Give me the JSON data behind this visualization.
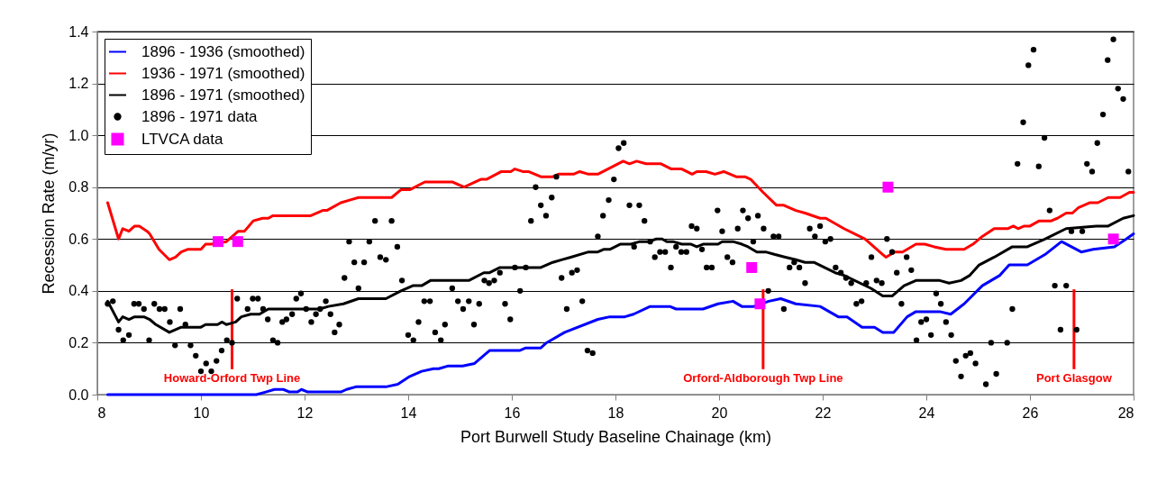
{
  "chart_data": {
    "type": "line",
    "xlabel": "Port Burwell Study Baseline Chainage (km)",
    "ylabel": "Recession Rate (m/yr)",
    "xlim": [
      8,
      28
    ],
    "xticks": [
      8,
      10,
      12,
      14,
      16,
      18,
      20,
      22,
      24,
      26,
      28
    ],
    "ylim": [
      0,
      1.4
    ],
    "yticks": [
      {
        "value": 0,
        "label": "0.0"
      },
      {
        "value": 0.2,
        "label": "0.2"
      },
      {
        "value": 0.4,
        "label": "0.4"
      },
      {
        "value": 0.6,
        "label": "0.6"
      },
      {
        "value": 0.8,
        "label": "0.8"
      },
      {
        "value": 1,
        "label": "1.0"
      },
      {
        "value": 1.2,
        "label": "1.2"
      },
      {
        "value": 1.4,
        "label": "1.4"
      }
    ],
    "grid": "y",
    "legend": "top left",
    "series": [
      {
        "name": "1896 - 1936 (smoothed)",
        "marker": "none",
        "color": "#0000ff",
        "x": [
          8.2,
          11.07,
          11.25,
          11.42,
          11.59,
          11.71,
          11.86,
          11.94,
          12.06,
          12.7,
          12.81,
          12.99,
          13.57,
          13.8,
          14.03,
          14.26,
          14.49,
          14.59,
          14.76,
          15.05,
          15.28,
          15.57,
          15.8,
          16.15,
          16.27,
          16.56,
          16.67,
          17.02,
          17.66,
          17.89,
          18.18,
          18.35,
          18.67,
          19.05,
          19.17,
          19.69,
          19.98,
          20.27,
          20.44,
          20.67,
          20.96,
          21.19,
          21.48,
          21.95,
          22.3,
          22.47,
          22.76,
          23.0,
          23.16,
          23.37,
          23.63,
          23.8,
          24.26,
          24.47,
          24.73,
          25.08,
          25.42,
          25.6,
          25.95,
          26.29,
          26.61,
          26.99,
          27.22,
          27.63,
          27.86,
          28.0
        ],
        "values": [
          0,
          0,
          0.01,
          0.02,
          0.02,
          0.01,
          0.01,
          0.02,
          0.01,
          0.01,
          0.02,
          0.03,
          0.03,
          0.04,
          0.07,
          0.09,
          0.1,
          0.1,
          0.11,
          0.11,
          0.12,
          0.17,
          0.17,
          0.17,
          0.18,
          0.18,
          0.2,
          0.24,
          0.29,
          0.3,
          0.3,
          0.31,
          0.34,
          0.34,
          0.33,
          0.33,
          0.35,
          0.36,
          0.34,
          0.34,
          0.36,
          0.37,
          0.35,
          0.34,
          0.3,
          0.3,
          0.26,
          0.26,
          0.24,
          0.24,
          0.3,
          0.32,
          0.32,
          0.31,
          0.35,
          0.42,
          0.46,
          0.5,
          0.5,
          0.54,
          0.59,
          0.55,
          0.56,
          0.57,
          0.6,
          0.62
        ]
      },
      {
        "name": "1936 - 1971 (smoothed)",
        "marker": "none",
        "color": "#ff0000",
        "x": [
          8.2,
          8.41,
          8.49,
          8.61,
          8.72,
          8.81,
          8.96,
          9.01,
          9.19,
          9.39,
          9.51,
          9.62,
          9.74,
          10.0,
          10.09,
          10.2,
          10.49,
          10.72,
          10.84,
          11.01,
          11.19,
          11.3,
          11.39,
          12.12,
          12.35,
          12.43,
          12.7,
          12.87,
          13.04,
          13.68,
          13.86,
          14.03,
          14.32,
          14.85,
          15.08,
          15.4,
          15.51,
          15.8,
          15.98,
          16.06,
          16.21,
          16.32,
          16.56,
          16.79,
          16.9,
          17.19,
          17.31,
          17.48,
          17.66,
          18.15,
          18.27,
          18.41,
          18.59,
          18.88,
          19.08,
          19.28,
          19.48,
          19.57,
          19.75,
          19.92,
          20.09,
          20.33,
          20.5,
          20.61,
          20.85,
          21.11,
          21.25,
          21.48,
          21.66,
          21.95,
          22.06,
          22.41,
          22.82,
          23.16,
          23.22,
          23.39,
          23.54,
          23.8,
          23.97,
          24.15,
          24.38,
          24.73,
          24.9,
          25.08,
          25.31,
          25.57,
          25.68,
          25.77,
          25.89,
          26.0,
          26.18,
          26.41,
          26.53,
          26.7,
          26.82,
          26.93,
          27.16,
          27.31,
          27.51,
          27.74,
          27.92,
          28.0
        ],
        "values": [
          0.74,
          0.6,
          0.64,
          0.63,
          0.65,
          0.65,
          0.63,
          0.62,
          0.56,
          0.52,
          0.53,
          0.55,
          0.56,
          0.56,
          0.58,
          0.58,
          0.59,
          0.63,
          0.63,
          0.67,
          0.68,
          0.68,
          0.69,
          0.69,
          0.71,
          0.71,
          0.74,
          0.75,
          0.76,
          0.76,
          0.79,
          0.79,
          0.82,
          0.82,
          0.8,
          0.83,
          0.83,
          0.86,
          0.86,
          0.87,
          0.86,
          0.86,
          0.84,
          0.84,
          0.85,
          0.85,
          0.86,
          0.85,
          0.85,
          0.9,
          0.89,
          0.9,
          0.89,
          0.89,
          0.87,
          0.87,
          0.85,
          0.86,
          0.86,
          0.85,
          0.86,
          0.84,
          0.84,
          0.83,
          0.78,
          0.73,
          0.73,
          0.71,
          0.7,
          0.68,
          0.68,
          0.64,
          0.6,
          0.54,
          0.53,
          0.55,
          0.55,
          0.58,
          0.58,
          0.57,
          0.56,
          0.56,
          0.58,
          0.61,
          0.64,
          0.64,
          0.65,
          0.64,
          0.65,
          0.65,
          0.67,
          0.67,
          0.68,
          0.7,
          0.7,
          0.72,
          0.74,
          0.74,
          0.76,
          0.76,
          0.78,
          0.78
        ]
      },
      {
        "name": "1896 - 1971 (smoothed)",
        "marker": "none",
        "color": "#000000",
        "x": [
          8.2,
          8.41,
          8.49,
          8.61,
          8.72,
          8.9,
          9.01,
          9.13,
          9.39,
          9.62,
          10.0,
          10.09,
          10.32,
          10.41,
          10.49,
          10.67,
          10.78,
          10.96,
          11.13,
          11.3,
          12.29,
          12.46,
          12.75,
          13.04,
          13.57,
          13.86,
          14.09,
          14.26,
          14.43,
          15.17,
          15.46,
          15.57,
          15.77,
          16.56,
          16.79,
          16.96,
          17.14,
          17.48,
          17.66,
          17.77,
          17.89,
          18.09,
          18.3,
          18.47,
          18.64,
          18.79,
          18.9,
          18.99,
          19.11,
          19.28,
          19.46,
          19.57,
          19.69,
          19.98,
          20.06,
          20.27,
          20.44,
          20.56,
          20.73,
          20.9,
          21.08,
          21.28,
          21.48,
          21.66,
          21.83,
          22.24,
          22.41,
          22.93,
          23.16,
          23.34,
          23.57,
          23.8,
          24.26,
          24.44,
          24.67,
          24.84,
          25.02,
          25.31,
          25.66,
          25.95,
          26.29,
          26.7,
          27.28,
          27.51,
          27.8,
          28.0
        ],
        "values": [
          0.36,
          0.28,
          0.3,
          0.29,
          0.3,
          0.3,
          0.29,
          0.27,
          0.24,
          0.26,
          0.26,
          0.27,
          0.27,
          0.28,
          0.27,
          0.28,
          0.3,
          0.31,
          0.31,
          0.33,
          0.33,
          0.34,
          0.35,
          0.37,
          0.37,
          0.4,
          0.42,
          0.42,
          0.44,
          0.44,
          0.47,
          0.47,
          0.49,
          0.49,
          0.51,
          0.52,
          0.53,
          0.55,
          0.55,
          0.56,
          0.56,
          0.58,
          0.58,
          0.59,
          0.59,
          0.6,
          0.6,
          0.59,
          0.59,
          0.58,
          0.58,
          0.57,
          0.58,
          0.58,
          0.59,
          0.59,
          0.58,
          0.57,
          0.55,
          0.55,
          0.54,
          0.53,
          0.52,
          0.51,
          0.51,
          0.47,
          0.46,
          0.41,
          0.38,
          0.38,
          0.42,
          0.44,
          0.44,
          0.43,
          0.44,
          0.46,
          0.5,
          0.53,
          0.57,
          0.57,
          0.6,
          0.64,
          0.65,
          0.65,
          0.68,
          0.69
        ]
      },
      {
        "name": "1896 - 1971 data",
        "type": "scatter",
        "marker": "circle",
        "color": "#000000",
        "x": [
          8.2,
          8.3,
          8.41,
          8.5,
          8.61,
          8.71,
          8.8,
          8.9,
          9.0,
          9.1,
          9.2,
          9.3,
          9.4,
          9.5,
          9.6,
          9.7,
          9.8,
          9.9,
          10.0,
          10.1,
          10.2,
          10.3,
          10.4,
          10.5,
          10.6,
          10.7,
          10.9,
          11.0,
          11.1,
          11.2,
          11.29,
          11.39,
          11.48,
          11.57,
          11.65,
          11.76,
          11.84,
          11.93,
          12.03,
          12.13,
          12.22,
          12.3,
          12.41,
          12.5,
          12.58,
          12.67,
          12.77,
          12.86,
          12.96,
          13.04,
          13.15,
          13.25,
          13.36,
          13.46,
          13.57,
          13.68,
          13.79,
          13.88,
          14.0,
          14.1,
          14.2,
          14.31,
          14.42,
          14.52,
          14.63,
          14.71,
          14.85,
          14.96,
          15.06,
          15.17,
          15.27,
          15.37,
          15.47,
          15.56,
          15.66,
          15.77,
          15.87,
          15.97,
          16.06,
          16.16,
          16.27,
          16.37,
          16.46,
          16.56,
          16.66,
          16.77,
          16.86,
          16.96,
          17.06,
          17.16,
          17.26,
          17.36,
          17.46,
          17.56,
          17.66,
          17.76,
          17.87,
          17.97,
          18.06,
          18.16,
          18.27,
          18.36,
          18.46,
          18.56,
          18.67,
          18.76,
          18.86,
          18.96,
          19.07,
          19.17,
          19.27,
          19.37,
          19.47,
          19.57,
          19.67,
          19.76,
          19.86,
          19.97,
          20.06,
          20.16,
          20.26,
          20.36,
          20.46,
          20.56,
          20.66,
          20.75,
          20.86,
          20.95,
          21.05,
          21.15,
          21.25,
          21.36,
          21.45,
          21.55,
          21.66,
          21.75,
          21.85,
          21.95,
          22.05,
          22.15,
          22.25,
          22.35,
          22.45,
          22.55,
          22.65,
          22.75,
          22.84,
          22.94,
          23.04,
          23.14,
          23.24,
          23.34,
          23.43,
          23.52,
          23.62,
          23.71,
          23.81,
          23.9,
          24.0,
          24.09,
          24.19,
          24.28,
          24.38,
          24.48,
          24.57,
          24.67,
          24.76,
          24.85,
          24.95,
          25.15,
          25.25,
          25.35,
          25.56,
          25.66,
          25.76,
          25.87,
          25.97,
          26.07,
          26.17,
          26.28,
          26.38,
          26.48,
          26.59,
          26.7,
          26.8,
          26.9,
          27.01,
          27.1,
          27.2,
          27.3,
          27.41,
          27.5,
          27.61,
          27.7,
          27.8,
          27.9
        ],
        "values": [
          0.35,
          0.36,
          0.25,
          0.21,
          0.23,
          0.35,
          0.35,
          0.33,
          0.21,
          0.35,
          0.33,
          0.33,
          0.28,
          0.19,
          0.33,
          0.27,
          0.19,
          0.15,
          0.09,
          0.12,
          0.09,
          0.13,
          0.17,
          0.21,
          0.2,
          0.37,
          0.33,
          0.37,
          0.37,
          0.33,
          0.29,
          0.21,
          0.2,
          0.28,
          0.29,
          0.31,
          0.37,
          0.39,
          0.33,
          0.28,
          0.31,
          0.33,
          0.36,
          0.31,
          0.24,
          0.27,
          0.45,
          0.59,
          0.51,
          0.41,
          0.51,
          0.59,
          0.67,
          0.53,
          0.52,
          0.67,
          0.57,
          0.44,
          0.23,
          0.21,
          0.28,
          0.36,
          0.36,
          0.24,
          0.21,
          0.27,
          0.41,
          0.36,
          0.33,
          0.36,
          0.27,
          0.35,
          0.44,
          0.43,
          0.44,
          0.47,
          0.35,
          0.29,
          0.49,
          0.4,
          0.49,
          0.67,
          0.8,
          0.73,
          0.69,
          0.76,
          0.84,
          0.45,
          0.33,
          0.47,
          0.48,
          0.36,
          0.17,
          0.16,
          0.61,
          0.69,
          0.75,
          0.83,
          0.95,
          0.97,
          0.73,
          0.57,
          0.73,
          0.67,
          0.59,
          0.53,
          0.55,
          0.55,
          0.49,
          0.57,
          0.55,
          0.55,
          0.65,
          0.64,
          0.56,
          0.49,
          0.49,
          0.71,
          0.63,
          0.53,
          0.51,
          0.64,
          0.71,
          0.68,
          0.59,
          0.69,
          0.64,
          0.4,
          0.61,
          0.61,
          0.33,
          0.49,
          0.51,
          0.49,
          0.43,
          0.64,
          0.61,
          0.65,
          0.59,
          0.6,
          0.49,
          0.47,
          0.45,
          0.43,
          0.35,
          0.36,
          0.43,
          0.53,
          0.44,
          0.43,
          0.6,
          0.55,
          0.47,
          0.35,
          0.53,
          0.48,
          0.21,
          0.28,
          0.29,
          0.23,
          0.39,
          0.35,
          0.28,
          0.23,
          0.13,
          0.07,
          0.15,
          0.16,
          0.12,
          0.04,
          0.2,
          0.08,
          0.2,
          0.33,
          0.89,
          1.05,
          1.27,
          1.33,
          0.88,
          0.99,
          0.71,
          0.42,
          0.25,
          0.42,
          0.63,
          0.25,
          0.63,
          0.89,
          0.86,
          0.97,
          1.08,
          1.29,
          1.37,
          1.18,
          1.14,
          0.86
        ]
      },
      {
        "name": "LTVCA data",
        "type": "scatter",
        "marker": "square",
        "color": "#ff00ff",
        "x": [
          10.33,
          10.71,
          20.63,
          20.79,
          23.26,
          27.61
        ],
        "values": [
          0.59,
          0.59,
          0.49,
          0.35,
          0.8,
          0.6
        ]
      }
    ],
    "ref_lines": [
      {
        "axis": "x",
        "value": 10.6,
        "label": "Howard-Orford Twp Line",
        "color": "#ff0000"
      },
      {
        "axis": "x",
        "value": 20.85,
        "label": "Orford-Aldborough Twp Line",
        "color": "#ff0000"
      },
      {
        "axis": "x",
        "value": 26.85,
        "label": "Port Glasgow",
        "color": "#ff0000"
      }
    ]
  }
}
